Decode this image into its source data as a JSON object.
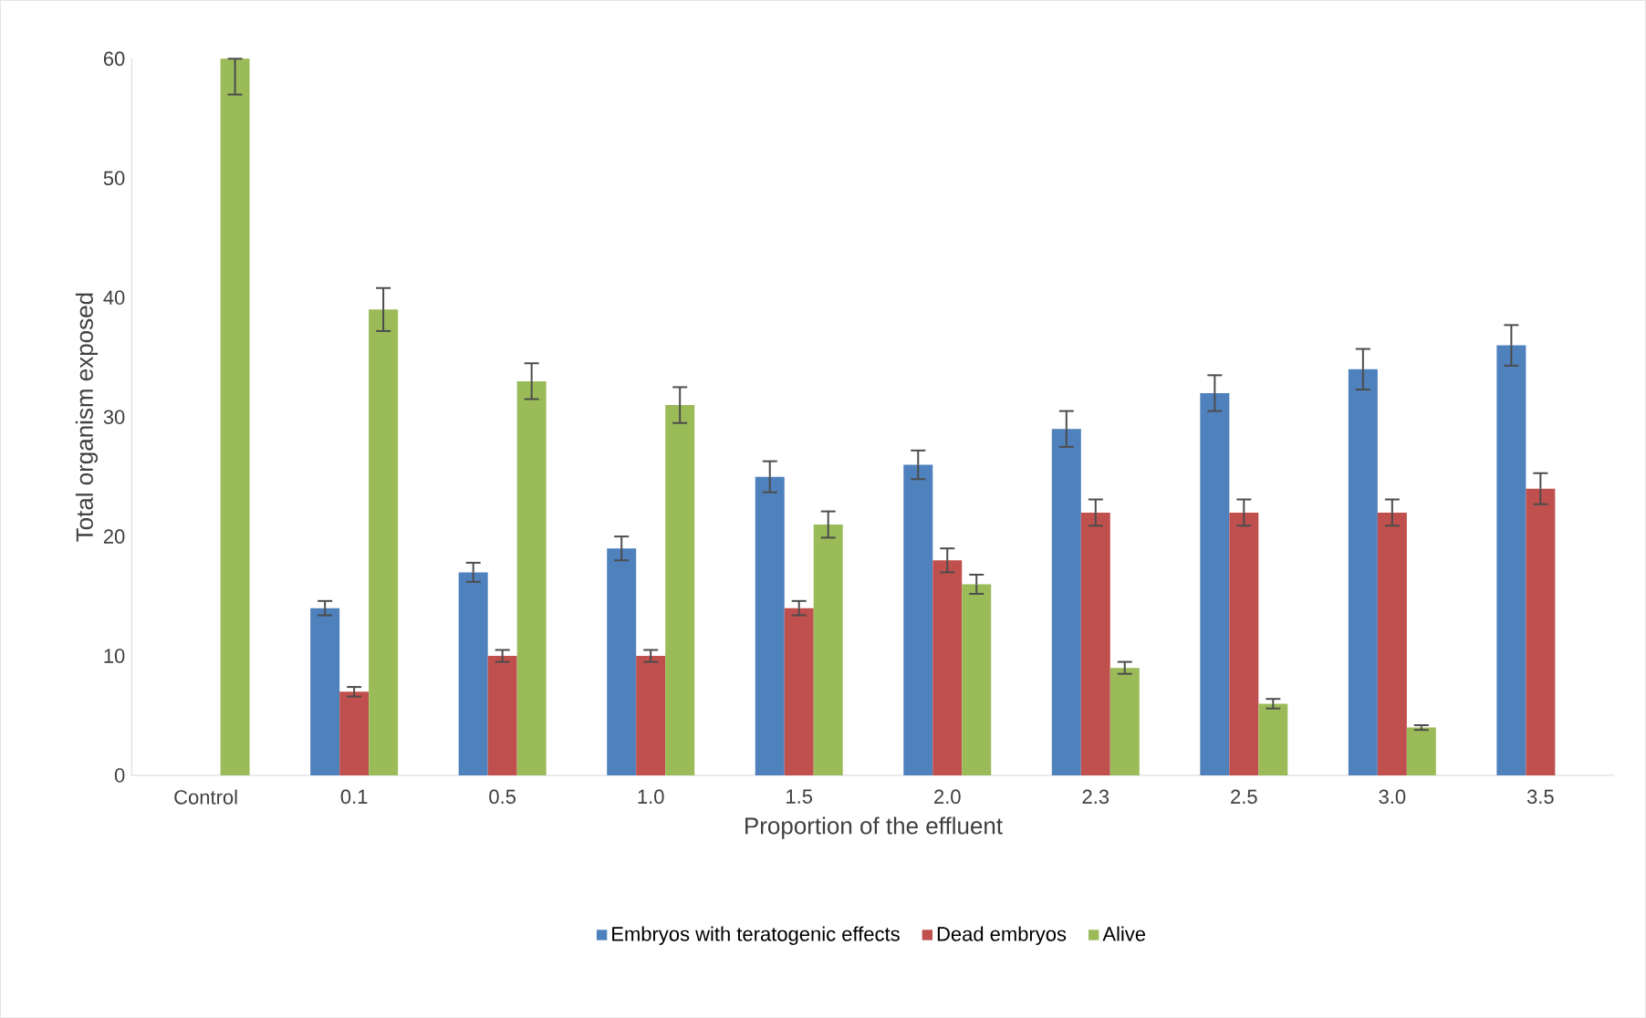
{
  "chart_data": {
    "type": "bar",
    "xlabel": "Proportion of the effluent",
    "ylabel": "Total organism exposed",
    "categories": [
      "Control",
      "0.1",
      "0.5",
      "1.0",
      "1.5",
      "2.0",
      "2.3",
      "2.5",
      "3.0",
      "3.5"
    ],
    "series": [
      {
        "name": "Embryos with teratogenic effects",
        "color": "#4f81bd",
        "values": [
          null,
          14,
          17,
          19,
          25,
          26,
          29,
          32,
          34,
          36
        ],
        "errors": [
          null,
          0.6,
          0.8,
          1,
          1.3,
          1.2,
          1.5,
          1.5,
          1.7,
          1.7
        ]
      },
      {
        "name": "Dead embryos",
        "color": "#c0504d",
        "values": [
          null,
          7,
          10,
          10,
          14,
          18,
          22,
          22,
          22,
          24
        ],
        "errors": [
          null,
          0.4,
          0.5,
          0.5,
          0.6,
          1,
          1.1,
          1.1,
          1.1,
          1.3
        ]
      },
      {
        "name": "Alive",
        "color": "#9bbb59",
        "values": [
          60,
          39,
          33,
          31,
          21,
          16,
          9,
          6,
          4,
          null
        ],
        "errors": [
          [
            57,
            60
          ],
          1.8,
          1.5,
          1.5,
          1.1,
          0.8,
          0.5,
          0.4,
          0.2,
          null
        ]
      }
    ],
    "ylim": [
      0,
      60
    ],
    "yticks": [
      0,
      10,
      20,
      30,
      40,
      50,
      60
    ],
    "grid": false,
    "legend": "bottom"
  }
}
